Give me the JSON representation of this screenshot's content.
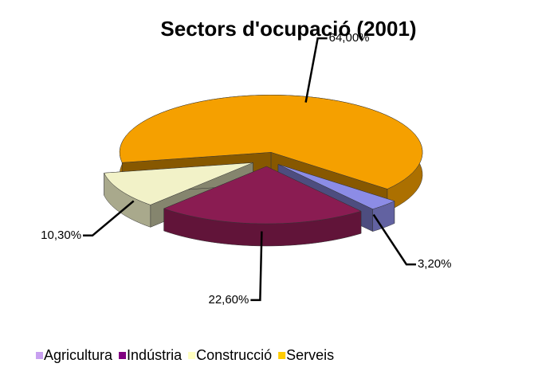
{
  "chart_data": {
    "type": "pie",
    "title": "Sectors d'ocupació (2001)",
    "categories": [
      "Agricultura",
      "Indústria",
      "Construcció",
      "Serveis"
    ],
    "values": [
      3.2,
      22.6,
      10.3,
      64.0
    ],
    "value_labels": [
      "3,20%",
      "22,60%",
      "10,30%",
      "64,00%"
    ],
    "colors": [
      "#8c8ce6",
      "#8a1c52",
      "#f2f2c8",
      "#f5a000"
    ],
    "legend_colors": [
      "#c8a0f0",
      "#800080",
      "#ffffc0",
      "#ffcc00"
    ],
    "legend": "bottom"
  }
}
